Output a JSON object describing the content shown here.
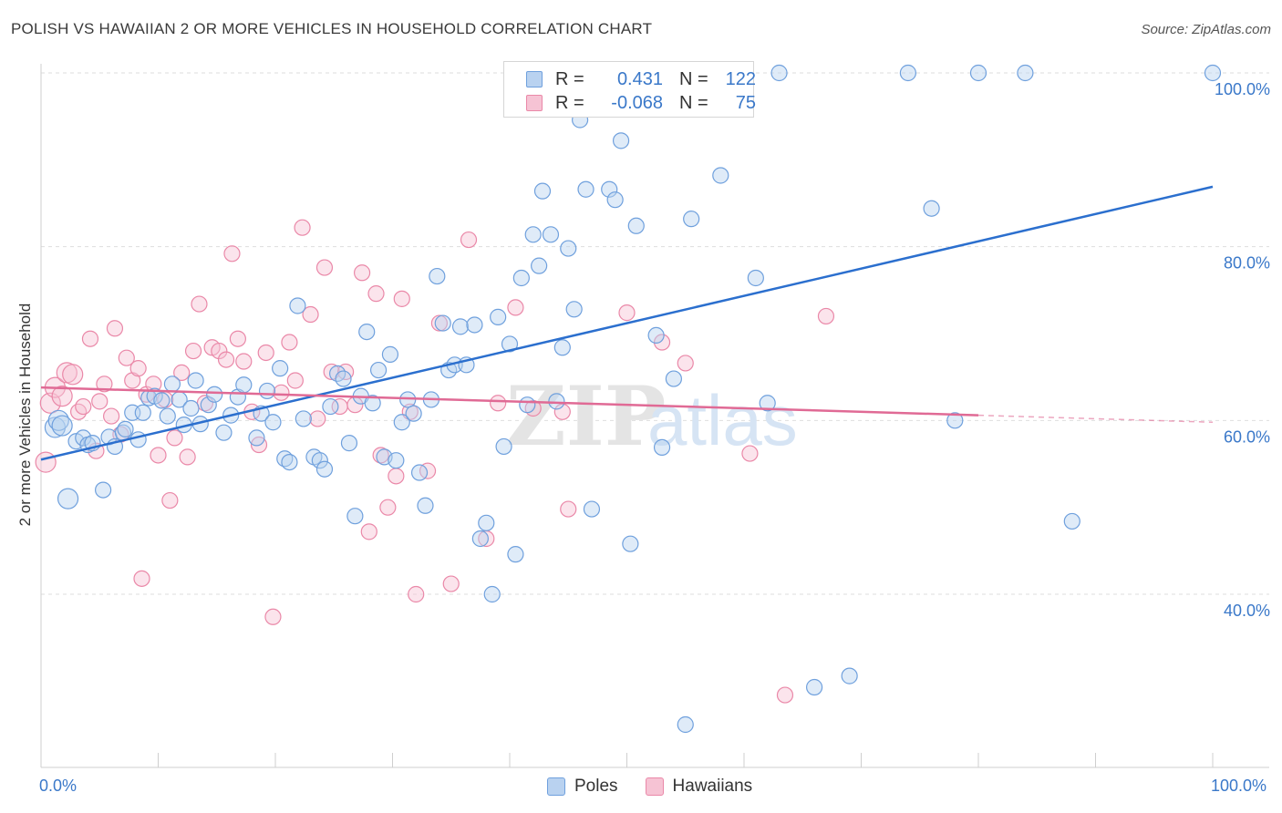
{
  "title": "POLISH VS HAWAIIAN 2 OR MORE VEHICLES IN HOUSEHOLD CORRELATION CHART",
  "source": "Source: ZipAtlas.com",
  "colors": {
    "poles": "#6fa0dd",
    "poles_fill": "#b9d2f0",
    "hawaiians": "#ea88a8",
    "hawaiians_fill": "#f6c3d4",
    "poles_line": "#2b6fce",
    "hawaiians_line": "#e06a95",
    "axis_text": "#3a78c9"
  },
  "legend_top": {
    "rows": [
      {
        "r_label": "R =",
        "r_value": "0.431",
        "n_label": "N =",
        "n_value": "122"
      },
      {
        "r_label": "R =",
        "r_value": "-0.068",
        "n_label": "N =",
        "n_value": "75"
      }
    ]
  },
  "chart_data": {
    "type": "scatter",
    "title": "POLISH VS HAWAIIAN 2 OR MORE VEHICLES IN HOUSEHOLD CORRELATION CHART",
    "xlabel": "",
    "ylabel": "2 or more Vehicles in Household",
    "xlim": [
      0,
      100
    ],
    "ylim": [
      20,
      102
    ],
    "x_tick_labels": [
      "0.0%",
      "100.0%"
    ],
    "y_ticks": [
      40,
      60,
      80,
      100
    ],
    "y_tick_labels": [
      "40.0%",
      "60.0%",
      "80.0%",
      "100.0%"
    ],
    "grid": true,
    "legend_placement": "bottom",
    "watermark": "ZIPatlas",
    "series": [
      {
        "name": "Poles",
        "r": 0.431,
        "n": 122,
        "trend": {
          "x": [
            0,
            100
          ],
          "y": [
            55.5,
            86.9
          ]
        },
        "points": [
          [
            1.2,
            59.2
          ],
          [
            1.5,
            60.0
          ],
          [
            1.8,
            59.4
          ],
          [
            2.3,
            51.0
          ],
          [
            3.0,
            57.6
          ],
          [
            3.6,
            58.0
          ],
          [
            4.0,
            57.2
          ],
          [
            4.4,
            57.4
          ],
          [
            5.3,
            52.0
          ],
          [
            5.8,
            58.1
          ],
          [
            6.3,
            57.0
          ],
          [
            7.0,
            58.6
          ],
          [
            7.2,
            59.0
          ],
          [
            7.8,
            60.9
          ],
          [
            8.3,
            57.8
          ],
          [
            8.7,
            60.9
          ],
          [
            9.2,
            62.6
          ],
          [
            9.7,
            62.8
          ],
          [
            10.3,
            62.3
          ],
          [
            10.8,
            60.5
          ],
          [
            11.2,
            64.2
          ],
          [
            11.8,
            62.4
          ],
          [
            12.2,
            59.5
          ],
          [
            12.8,
            61.4
          ],
          [
            13.2,
            64.6
          ],
          [
            13.6,
            59.6
          ],
          [
            14.3,
            61.8
          ],
          [
            14.8,
            63.0
          ],
          [
            15.6,
            58.6
          ],
          [
            16.2,
            60.6
          ],
          [
            16.8,
            62.7
          ],
          [
            17.3,
            64.1
          ],
          [
            18.4,
            58.0
          ],
          [
            18.8,
            60.8
          ],
          [
            19.3,
            63.4
          ],
          [
            19.8,
            59.8
          ],
          [
            20.4,
            66.0
          ],
          [
            20.8,
            55.6
          ],
          [
            21.2,
            55.2
          ],
          [
            21.9,
            73.2
          ],
          [
            22.4,
            60.2
          ],
          [
            23.3,
            55.8
          ],
          [
            23.8,
            55.4
          ],
          [
            24.2,
            54.4
          ],
          [
            24.7,
            61.6
          ],
          [
            25.3,
            65.4
          ],
          [
            25.8,
            64.8
          ],
          [
            26.3,
            57.4
          ],
          [
            26.8,
            49.0
          ],
          [
            27.3,
            62.8
          ],
          [
            27.8,
            70.2
          ],
          [
            28.3,
            62.0
          ],
          [
            28.8,
            65.8
          ],
          [
            29.3,
            55.8
          ],
          [
            29.8,
            67.6
          ],
          [
            30.3,
            55.4
          ],
          [
            30.8,
            59.8
          ],
          [
            31.3,
            62.4
          ],
          [
            31.8,
            60.8
          ],
          [
            32.3,
            54.0
          ],
          [
            32.8,
            50.2
          ],
          [
            33.3,
            62.4
          ],
          [
            33.8,
            76.6
          ],
          [
            34.3,
            71.2
          ],
          [
            34.8,
            65.8
          ],
          [
            35.3,
            66.4
          ],
          [
            35.8,
            70.8
          ],
          [
            36.3,
            66.4
          ],
          [
            37.0,
            71.0
          ],
          [
            37.5,
            46.4
          ],
          [
            38.0,
            48.2
          ],
          [
            38.5,
            40.0
          ],
          [
            39.0,
            71.9
          ],
          [
            39.5,
            57.0
          ],
          [
            40.0,
            68.8
          ],
          [
            40.5,
            44.6
          ],
          [
            41.0,
            76.4
          ],
          [
            41.5,
            61.8
          ],
          [
            42.0,
            81.4
          ],
          [
            42.5,
            77.8
          ],
          [
            42.8,
            86.4
          ],
          [
            43.5,
            81.4
          ],
          [
            44.0,
            62.2
          ],
          [
            44.5,
            68.4
          ],
          [
            45.0,
            79.8
          ],
          [
            45.5,
            72.8
          ],
          [
            46.0,
            94.6
          ],
          [
            46.5,
            86.6
          ],
          [
            47.0,
            49.8
          ],
          [
            47.5,
            100.0
          ],
          [
            48.0,
            100.0
          ],
          [
            48.5,
            86.6
          ],
          [
            49.0,
            85.4
          ],
          [
            49.5,
            92.2
          ],
          [
            50.3,
            45.8
          ],
          [
            50.8,
            82.4
          ],
          [
            52.5,
            69.8
          ],
          [
            53.0,
            56.9
          ],
          [
            53.5,
            100.0
          ],
          [
            54.0,
            64.8
          ],
          [
            55.0,
            25.0
          ],
          [
            55.5,
            83.2
          ],
          [
            58.0,
            88.2
          ],
          [
            61.0,
            76.4
          ],
          [
            62.0,
            62.0
          ],
          [
            63.0,
            100.0
          ],
          [
            66.0,
            29.3
          ],
          [
            69.0,
            30.6
          ],
          [
            74.0,
            100.0
          ],
          [
            76.0,
            84.4
          ],
          [
            78.0,
            60.0
          ],
          [
            80.0,
            100.0
          ],
          [
            84.0,
            100.0
          ],
          [
            88.0,
            48.4
          ],
          [
            100.0,
            100.0
          ]
        ]
      },
      {
        "name": "Hawaiians",
        "r": -0.068,
        "n": 75,
        "trend": {
          "x": [
            0,
            80
          ],
          "y": [
            63.8,
            60.6
          ]
        },
        "trend_dashed": {
          "x": [
            80,
            100
          ],
          "y": [
            60.6,
            59.8
          ]
        },
        "points": [
          [
            0.4,
            55.2
          ],
          [
            0.8,
            62.0
          ],
          [
            1.2,
            63.8
          ],
          [
            1.8,
            62.8
          ],
          [
            2.2,
            65.5
          ],
          [
            2.7,
            65.3
          ],
          [
            3.2,
            61.0
          ],
          [
            3.6,
            61.6
          ],
          [
            4.2,
            69.4
          ],
          [
            4.7,
            56.5
          ],
          [
            5.0,
            62.2
          ],
          [
            5.4,
            64.2
          ],
          [
            6.0,
            60.5
          ],
          [
            6.3,
            70.6
          ],
          [
            6.8,
            58.4
          ],
          [
            7.3,
            67.2
          ],
          [
            7.8,
            64.6
          ],
          [
            8.3,
            66.0
          ],
          [
            8.6,
            41.8
          ],
          [
            9.0,
            63.0
          ],
          [
            9.6,
            64.2
          ],
          [
            10.0,
            56.0
          ],
          [
            10.6,
            62.4
          ],
          [
            11.0,
            50.8
          ],
          [
            11.4,
            58.0
          ],
          [
            12.0,
            65.5
          ],
          [
            12.5,
            55.8
          ],
          [
            13.0,
            68.0
          ],
          [
            13.5,
            73.4
          ],
          [
            14.0,
            62.0
          ],
          [
            14.6,
            68.4
          ],
          [
            15.2,
            68.0
          ],
          [
            15.8,
            67.0
          ],
          [
            16.3,
            79.2
          ],
          [
            16.8,
            69.4
          ],
          [
            17.3,
            66.8
          ],
          [
            18.0,
            61.0
          ],
          [
            18.6,
            57.2
          ],
          [
            19.2,
            67.8
          ],
          [
            19.8,
            37.4
          ],
          [
            20.5,
            63.2
          ],
          [
            21.2,
            69.0
          ],
          [
            21.7,
            64.6
          ],
          [
            22.3,
            82.2
          ],
          [
            23.0,
            72.2
          ],
          [
            23.6,
            60.2
          ],
          [
            24.2,
            77.6
          ],
          [
            24.8,
            65.6
          ],
          [
            25.5,
            61.6
          ],
          [
            26.0,
            65.6
          ],
          [
            26.8,
            61.8
          ],
          [
            27.4,
            77.0
          ],
          [
            28.0,
            47.2
          ],
          [
            28.6,
            74.6
          ],
          [
            29.0,
            56.0
          ],
          [
            29.6,
            50.0
          ],
          [
            30.3,
            53.6
          ],
          [
            30.8,
            74.0
          ],
          [
            31.5,
            61.0
          ],
          [
            32.0,
            40.0
          ],
          [
            33.0,
            54.2
          ],
          [
            34.0,
            71.2
          ],
          [
            35.0,
            41.2
          ],
          [
            36.5,
            80.8
          ],
          [
            38.0,
            46.4
          ],
          [
            39.0,
            62.0
          ],
          [
            40.5,
            73.0
          ],
          [
            42.0,
            61.4
          ],
          [
            44.5,
            61.0
          ],
          [
            45.0,
            49.8
          ],
          [
            50.0,
            72.4
          ],
          [
            53.0,
            69.0
          ],
          [
            55.0,
            66.6
          ],
          [
            60.5,
            56.2
          ],
          [
            63.5,
            28.4
          ],
          [
            67.0,
            72.0
          ]
        ]
      }
    ]
  },
  "bottom_legend": [
    {
      "label": "Poles"
    },
    {
      "label": "Hawaiians"
    }
  ]
}
